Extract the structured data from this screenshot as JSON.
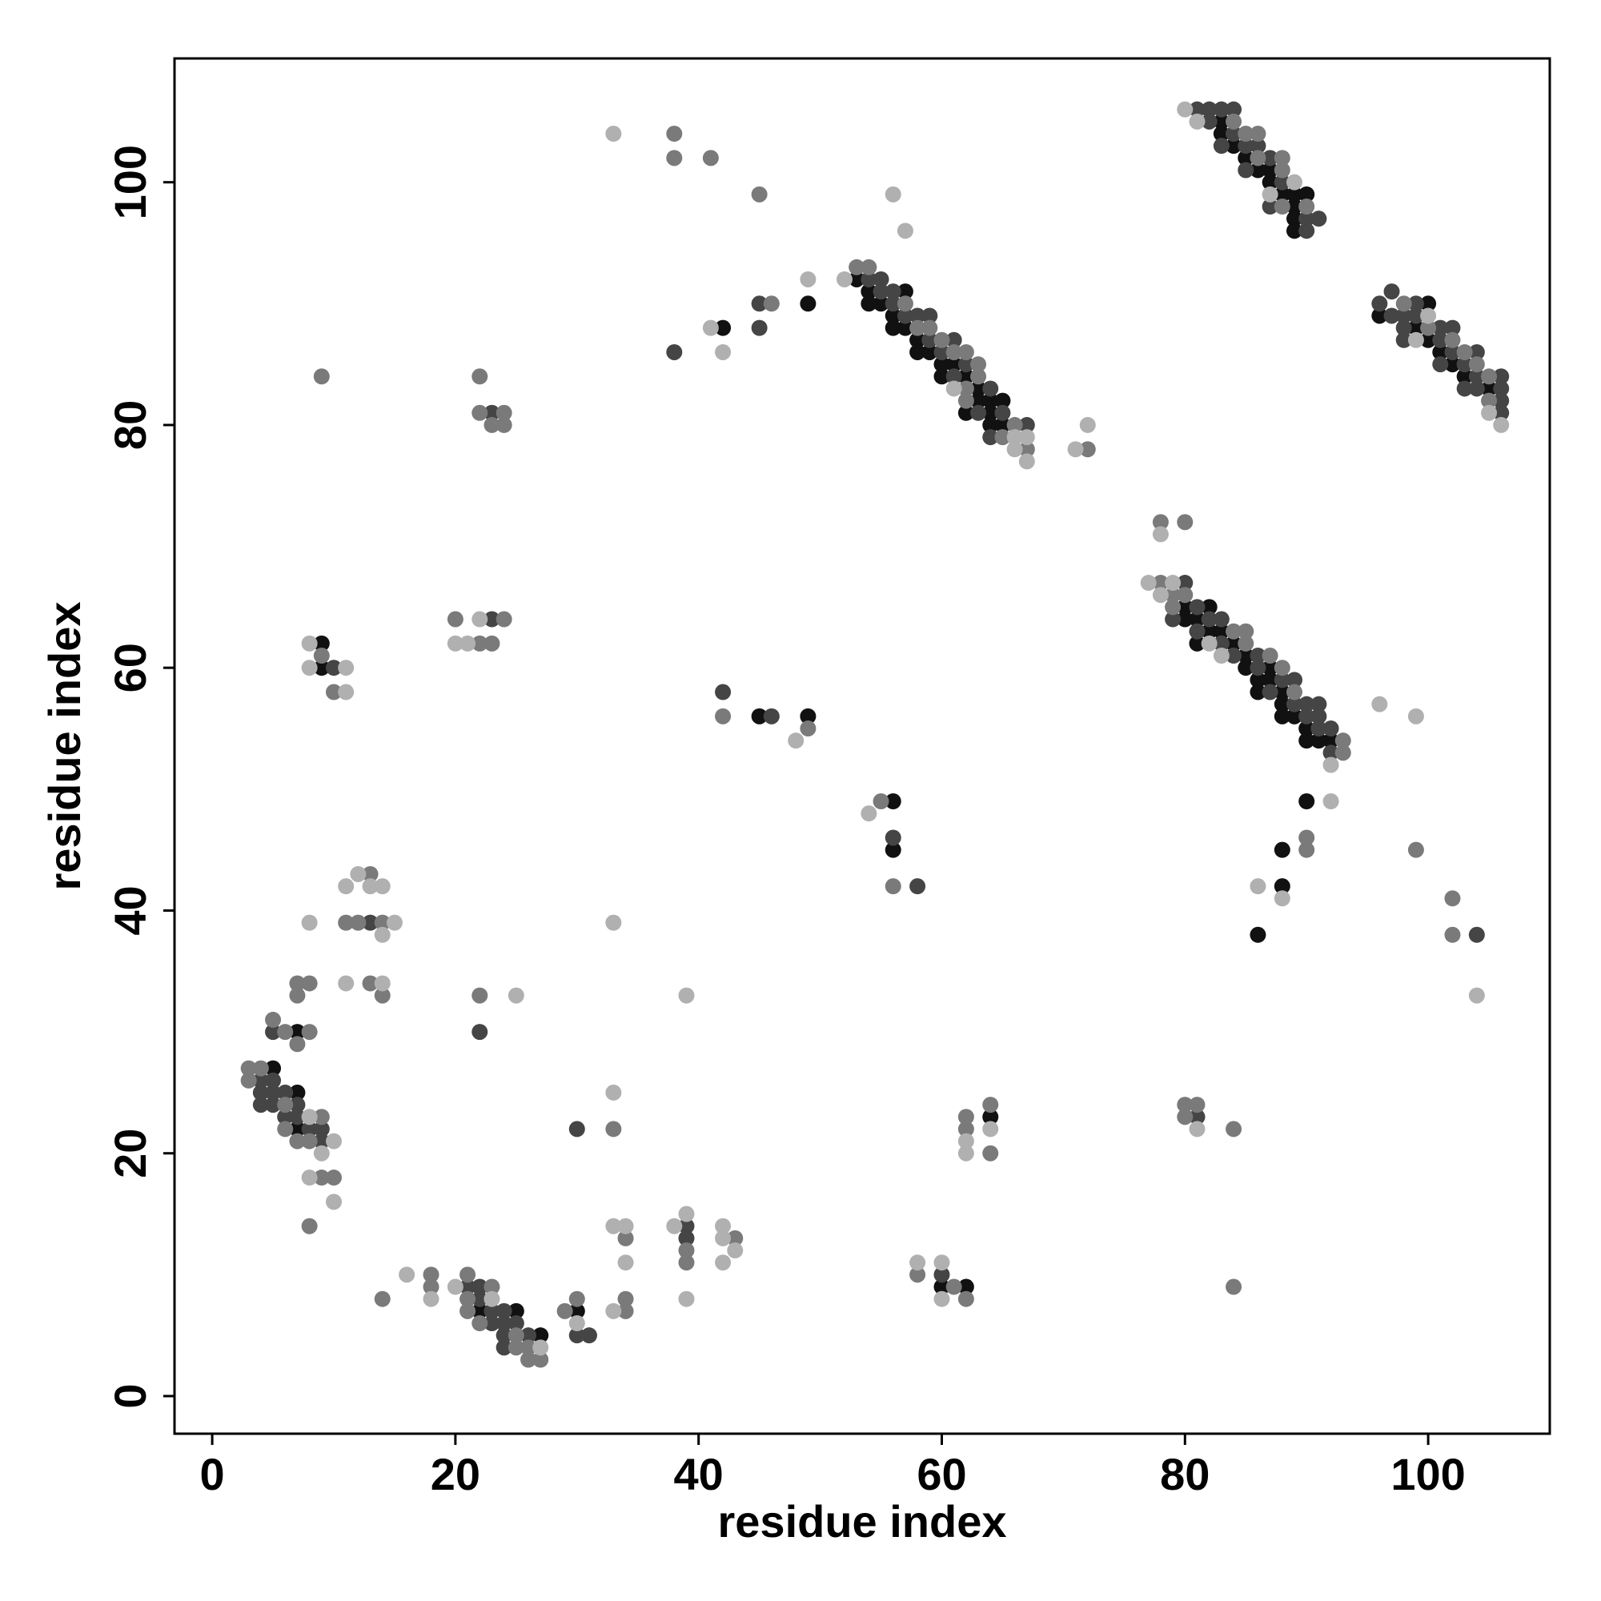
{
  "chart_data": {
    "type": "scatter",
    "xlabel": "residue index",
    "ylabel": "residue index",
    "xlim": [
      -3.1,
      110.0
    ],
    "ylim": [
      -3.1,
      110.2
    ],
    "xticks": [
      0,
      20,
      40,
      60,
      80,
      100
    ],
    "yticks": [
      0,
      20,
      40,
      60,
      80,
      100
    ],
    "series": [
      {
        "color": "#111111",
        "x": [
          5,
          7,
          7,
          7,
          9,
          9,
          22,
          25,
          27,
          30,
          42,
          49,
          45,
          49,
          56,
          56,
          60,
          62,
          64,
          53,
          54,
          54,
          55,
          57,
          56,
          56,
          57,
          58,
          58,
          59,
          60,
          61,
          60,
          62,
          63,
          63,
          64,
          65,
          62,
          64,
          64,
          65,
          83,
          83,
          84,
          85,
          86,
          87,
          87,
          88,
          89,
          90,
          89,
          89,
          89,
          96,
          100,
          99,
          100,
          101,
          102,
          103,
          105,
          80,
          82,
          80,
          81,
          82,
          83,
          81,
          84,
          85,
          85,
          87,
          86,
          87,
          86,
          88,
          88,
          88,
          89,
          90,
          90,
          91,
          92,
          90,
          88,
          88,
          86
        ],
        "y": [
          27,
          25,
          22,
          30,
          62,
          60,
          7,
          7,
          5,
          7,
          88,
          90,
          56,
          56,
          49,
          45,
          9,
          9,
          23,
          92,
          91,
          90,
          90,
          91,
          89,
          88,
          88,
          87,
          86,
          86,
          85,
          85,
          84,
          84,
          83,
          82,
          82,
          82,
          81,
          81,
          80,
          80,
          105,
          104,
          103,
          102,
          101,
          101,
          100,
          99,
          99,
          99,
          98,
          97,
          96,
          89,
          90,
          88,
          87,
          86,
          85,
          84,
          83,
          65,
          65,
          64,
          64,
          63,
          63,
          62,
          62,
          61,
          60,
          60,
          59,
          59,
          58,
          58,
          57,
          56,
          56,
          55,
          54,
          54,
          54,
          49,
          45,
          42,
          38
        ]
      },
      {
        "color": "#454545",
        "x": [
          4,
          5,
          4,
          5,
          6,
          4,
          5,
          6,
          7,
          7,
          8,
          9,
          9,
          5,
          13,
          10,
          23,
          23,
          22,
          21,
          22,
          22,
          23,
          24,
          23,
          24,
          25,
          24,
          26,
          24,
          30,
          31,
          30,
          39,
          39,
          38,
          45,
          45,
          42,
          46,
          56,
          58,
          60,
          54,
          55,
          55,
          56,
          56,
          57,
          58,
          59,
          59,
          61,
          60,
          62,
          61,
          64,
          63,
          65,
          67,
          64,
          81,
          82,
          83,
          84,
          82,
          84,
          83,
          85,
          86,
          87,
          85,
          88,
          87,
          90,
          91,
          90,
          96,
          97,
          99,
          97,
          98,
          99,
          98,
          98,
          101,
          102,
          101,
          102,
          104,
          101,
          103,
          104,
          106,
          103,
          104,
          106,
          106,
          106,
          80,
          81,
          79,
          82,
          83,
          81,
          83,
          84,
          86,
          86,
          88,
          89,
          87,
          89,
          90,
          91,
          90,
          91,
          91,
          92,
          92,
          104,
          81
        ],
        "y": [
          26,
          26,
          25,
          25,
          25,
          24,
          24,
          23,
          23,
          24,
          22,
          22,
          21,
          30,
          39,
          60,
          64,
          81,
          30,
          9,
          9,
          8,
          7,
          7,
          6,
          6,
          6,
          5,
          5,
          4,
          5,
          5,
          22,
          14,
          13,
          86,
          88,
          90,
          58,
          56,
          46,
          42,
          10,
          92,
          92,
          91,
          91,
          90,
          89,
          89,
          89,
          87,
          87,
          86,
          85,
          84,
          83,
          81,
          81,
          80,
          79,
          106,
          106,
          106,
          106,
          105,
          104,
          103,
          103,
          103,
          102,
          101,
          100,
          98,
          97,
          97,
          96,
          90,
          91,
          90,
          89,
          89,
          89,
          88,
          87,
          88,
          88,
          87,
          86,
          86,
          85,
          85,
          84,
          84,
          83,
          83,
          83,
          82,
          81,
          67,
          65,
          64,
          64,
          64,
          63,
          62,
          61,
          61,
          60,
          59,
          59,
          58,
          57,
          57,
          57,
          56,
          56,
          55,
          55,
          53,
          38,
          23
        ]
      },
      {
        "color": "#7a7a7a",
        "x": [
          3,
          4,
          3,
          6,
          6,
          9,
          7,
          8,
          9,
          10,
          8,
          5,
          6,
          8,
          7,
          7,
          8,
          7,
          13,
          11,
          12,
          14,
          13,
          14,
          9,
          9,
          10,
          20,
          24,
          22,
          23,
          22,
          22,
          24,
          23,
          24,
          22,
          14,
          18,
          18,
          21,
          23,
          21,
          21,
          22,
          25,
          25,
          26,
          26,
          27,
          29,
          30,
          33,
          34,
          34,
          34,
          39,
          39,
          43,
          38,
          38,
          41,
          45,
          46,
          42,
          49,
          55,
          56,
          58,
          61,
          62,
          62,
          62,
          64,
          64,
          72,
          53,
          54,
          57,
          58,
          59,
          60,
          61,
          62,
          63,
          63,
          62,
          62,
          66,
          65,
          67,
          84,
          85,
          86,
          86,
          88,
          88,
          88,
          90,
          98,
          100,
          102,
          103,
          104,
          105,
          105,
          78,
          79,
          80,
          79,
          84,
          85,
          85,
          87,
          88,
          89,
          93,
          93,
          78,
          80,
          90,
          90,
          99,
          102,
          102,
          80,
          81,
          80,
          84,
          84
        ],
        "y": [
          27,
          27,
          26,
          24,
          22,
          23,
          21,
          21,
          18,
          18,
          14,
          31,
          30,
          30,
          29,
          34,
          34,
          33,
          43,
          39,
          39,
          39,
          34,
          33,
          84,
          61,
          58,
          64,
          64,
          62,
          62,
          84,
          81,
          81,
          80,
          80,
          33,
          8,
          10,
          9,
          10,
          9,
          8,
          7,
          6,
          5,
          4,
          4,
          3,
          3,
          7,
          8,
          22,
          13,
          8,
          7,
          12,
          11,
          13,
          104,
          102,
          102,
          99,
          90,
          56,
          55,
          49,
          42,
          10,
          9,
          8,
          23,
          22,
          24,
          20,
          78,
          93,
          93,
          90,
          88,
          88,
          87,
          86,
          86,
          85,
          84,
          83,
          82,
          80,
          79,
          78,
          105,
          104,
          104,
          102,
          102,
          101,
          98,
          98,
          90,
          88,
          87,
          86,
          85,
          84,
          82,
          67,
          66,
          66,
          65,
          63,
          63,
          62,
          61,
          60,
          58,
          54,
          53,
          72,
          72,
          46,
          45,
          45,
          41,
          38,
          24,
          24,
          23,
          22,
          9
        ]
      },
      {
        "color": "#b0b0b0",
        "x": [
          8,
          10,
          9,
          8,
          10,
          8,
          11,
          12,
          13,
          14,
          15,
          14,
          11,
          14,
          8,
          8,
          11,
          11,
          22,
          20,
          21,
          25,
          16,
          18,
          20,
          23,
          27,
          30,
          33,
          33,
          34,
          34,
          33,
          33,
          33,
          38,
          39,
          39,
          39,
          42,
          42,
          43,
          42,
          41,
          42,
          49,
          52,
          48,
          56,
          57,
          54,
          58,
          60,
          60,
          62,
          62,
          64,
          71,
          72,
          61,
          66,
          67,
          66,
          67,
          80,
          81,
          89,
          87,
          100,
          99,
          105,
          106,
          77,
          79,
          78,
          82,
          83,
          92,
          92,
          78,
          86,
          88,
          96,
          99,
          104,
          81
        ],
        "y": [
          23,
          21,
          20,
          18,
          16,
          39,
          42,
          43,
          42,
          42,
          39,
          38,
          34,
          34,
          62,
          60,
          60,
          58,
          64,
          62,
          62,
          33,
          10,
          8,
          9,
          8,
          4,
          6,
          25,
          14,
          14,
          11,
          7,
          39,
          104,
          14,
          15,
          8,
          33,
          14,
          13,
          12,
          11,
          88,
          86,
          92,
          92,
          54,
          99,
          96,
          48,
          11,
          11,
          8,
          21,
          20,
          22,
          78,
          80,
          83,
          79,
          79,
          78,
          77,
          106,
          105,
          100,
          99,
          89,
          87,
          81,
          80,
          67,
          67,
          66,
          62,
          61,
          52,
          49,
          71,
          42,
          41,
          57,
          56,
          33,
          22
        ]
      }
    ]
  }
}
